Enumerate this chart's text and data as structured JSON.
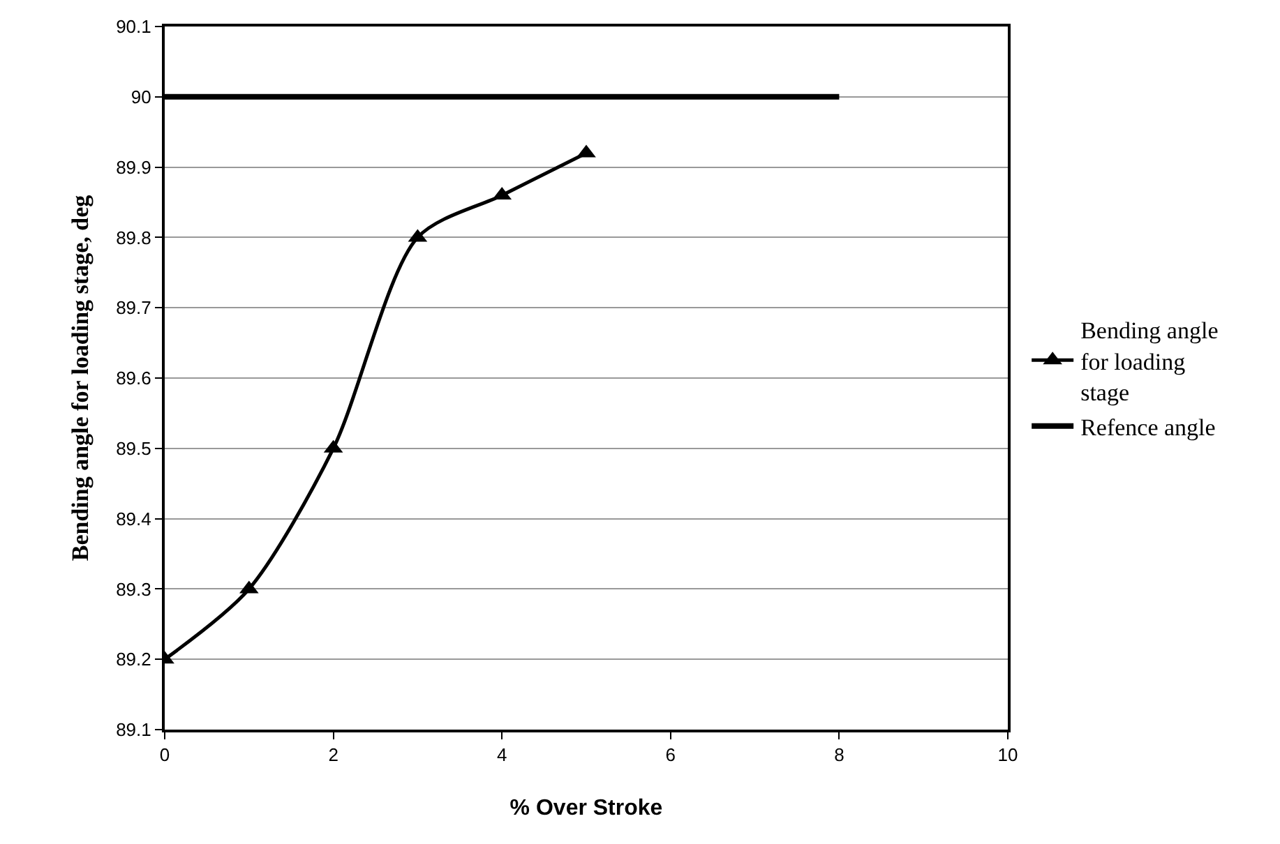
{
  "chart_data": {
    "type": "line",
    "xlabel": "% Over Stroke",
    "ylabel": "Bending angle for loading stage, deg",
    "series": [
      {
        "name": "Bending angle for loading stage",
        "color": "#000000",
        "x": [
          0,
          1,
          2,
          3,
          4,
          5
        ],
        "values": [
          89.2,
          89.3,
          89.5,
          89.8,
          89.86,
          89.92
        ],
        "marker": "triangle"
      },
      {
        "name": "Refence angle",
        "color": "#000000",
        "x": [
          0,
          8
        ],
        "values": [
          90,
          90
        ],
        "marker": "none"
      }
    ],
    "xlim": [
      0,
      10
    ],
    "xticks": [
      0,
      2,
      4,
      6,
      8,
      10
    ],
    "ylim": [
      89.1,
      90.1
    ],
    "yticks": [
      89.1,
      89.2,
      89.3,
      89.4,
      89.5,
      89.6,
      89.7,
      89.8,
      89.9,
      90,
      90.1
    ],
    "grid": "y",
    "legend": "right",
    "line_style": "solid"
  }
}
